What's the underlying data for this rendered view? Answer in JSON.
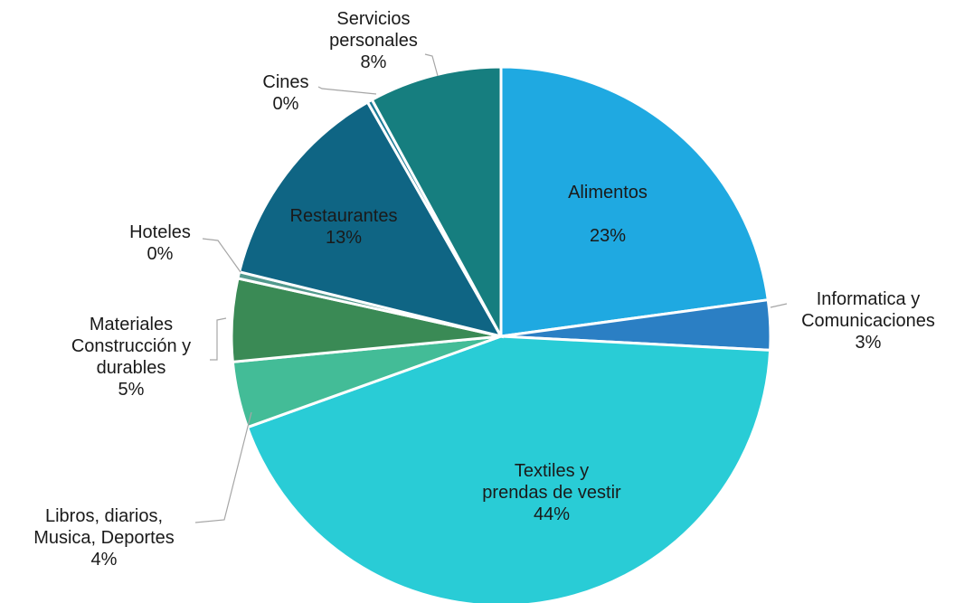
{
  "chart_data": {
    "type": "pie",
    "title": "",
    "slices": [
      {
        "label": "Alimentos",
        "value": 23,
        "pct": "23%",
        "color": "#1fa9e1"
      },
      {
        "label": "Informatica y Comunicaciones",
        "value": 3,
        "pct": "3%",
        "color": "#2b7fc4"
      },
      {
        "label": "Textiles y prendas de vestir",
        "value": 44,
        "pct": "44%",
        "color": "#29ccd6"
      },
      {
        "label": "Libros, diarios, Musica, Deportes",
        "value": 4,
        "pct": "4%",
        "color": "#43bc97"
      },
      {
        "label": "Materiales Construcción y durables",
        "value": 5,
        "pct": "5%",
        "color": "#3a8a55"
      },
      {
        "label": "Hoteles",
        "value": 0.4,
        "pct": "0%",
        "color": "#52998d"
      },
      {
        "label": "Restaurantes",
        "value": 13,
        "pct": "13%",
        "color": "#0f6584"
      },
      {
        "label": "Cines",
        "value": 0.3,
        "pct": "0%",
        "color": "#1b7a96"
      },
      {
        "label": "Servicios personales",
        "value": 8,
        "pct": "8%",
        "color": "#167e7f"
      }
    ]
  }
}
